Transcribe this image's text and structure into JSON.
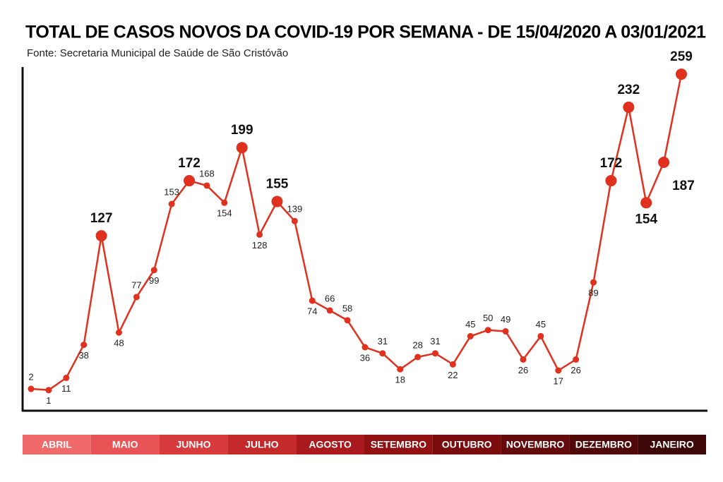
{
  "chart_data": {
    "type": "line",
    "title": "TOTAL DE CASOS NOVOS DA COVID-19 POR SEMANA - DE 15/04/2020 A 03/01/2021",
    "subtitle": "Fonte: Secretaria Municipal de Saúde de São Cristóvão",
    "values": [
      2,
      1,
      11,
      38,
      127,
      48,
      77,
      99,
      153,
      172,
      168,
      154,
      199,
      128,
      155,
      139,
      74,
      66,
      58,
      36,
      31,
      18,
      28,
      31,
      22,
      45,
      50,
      49,
      26,
      45,
      17,
      26,
      89,
      172,
      232,
      154,
      187,
      259
    ],
    "highlighted_indices": [
      4,
      9,
      12,
      14,
      33,
      34,
      35,
      36,
      37
    ],
    "color": "#e0301e",
    "ylim": [
      0,
      270
    ],
    "months": [
      "ABRIL",
      "MAIO",
      "JUNHO",
      "JULHO",
      "AGOSTO",
      "SETEMBRO",
      "OUTUBRO",
      "NOVEMBRO",
      "DEZEMBRO",
      "JANEIRO"
    ],
    "month_colors": [
      "#f06a6a",
      "#e85456",
      "#d63a3c",
      "#c42a2c",
      "#aa1a1c",
      "#921214",
      "#7a0c0e",
      "#640a0c",
      "#500809",
      "#3d0607"
    ]
  }
}
